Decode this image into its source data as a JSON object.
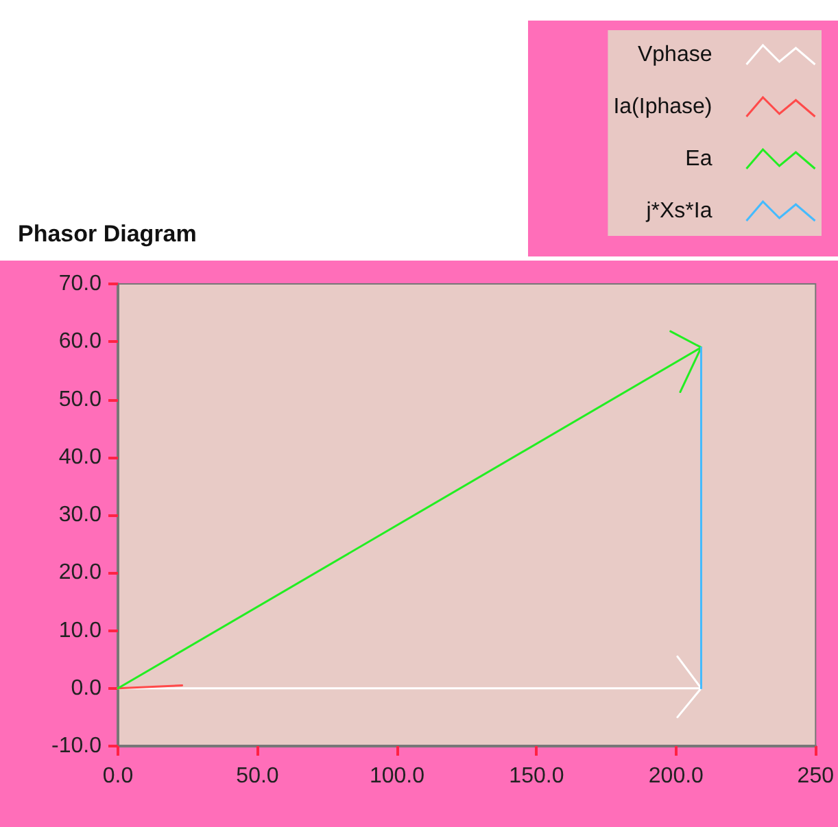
{
  "chart_data": {
    "type": "line",
    "title": "Phasor Diagram",
    "series": [
      {
        "name": "Vphase",
        "color": "#ffffff",
        "x": [
          0,
          209,
          200.5,
          209,
          200.5
        ],
        "values": [
          0,
          0,
          5.5,
          0,
          -5
        ]
      },
      {
        "name": "Ia(Iphase)",
        "color": "#ff4a4a",
        "x": [
          0,
          23
        ],
        "values": [
          0,
          0.5
        ]
      },
      {
        "name": "Ea",
        "color": "#22ee22",
        "x": [
          0,
          209,
          198,
          209,
          201.5
        ],
        "values": [
          0,
          59,
          61.8,
          59,
          51.3
        ]
      },
      {
        "name": "j*Xs*Ia",
        "color": "#44bbff",
        "x": [
          209,
          209
        ],
        "values": [
          0,
          59
        ]
      }
    ],
    "xlim": [
      0,
      250
    ],
    "ylim": [
      -10,
      70
    ],
    "xticks": [
      {
        "value": 0,
        "label": "0.0"
      },
      {
        "value": 50,
        "label": "50.0"
      },
      {
        "value": 100,
        "label": "100.0"
      },
      {
        "value": 150,
        "label": "150.0"
      },
      {
        "value": 200,
        "label": "200.0"
      },
      {
        "value": 250,
        "label": "250"
      }
    ],
    "yticks": [
      {
        "value": -10,
        "label": "-10.0"
      },
      {
        "value": 0,
        "label": "0.0"
      },
      {
        "value": 10,
        "label": "10.0"
      },
      {
        "value": 20,
        "label": "20.0"
      },
      {
        "value": 30,
        "label": "30.0"
      },
      {
        "value": 40,
        "label": "40.0"
      },
      {
        "value": 50,
        "label": "50.0"
      },
      {
        "value": 60,
        "label": "60.0"
      },
      {
        "value": 70,
        "label": "70.0"
      }
    ],
    "grid": false,
    "legend": "top right",
    "marker": "none",
    "line_style": "solid"
  }
}
